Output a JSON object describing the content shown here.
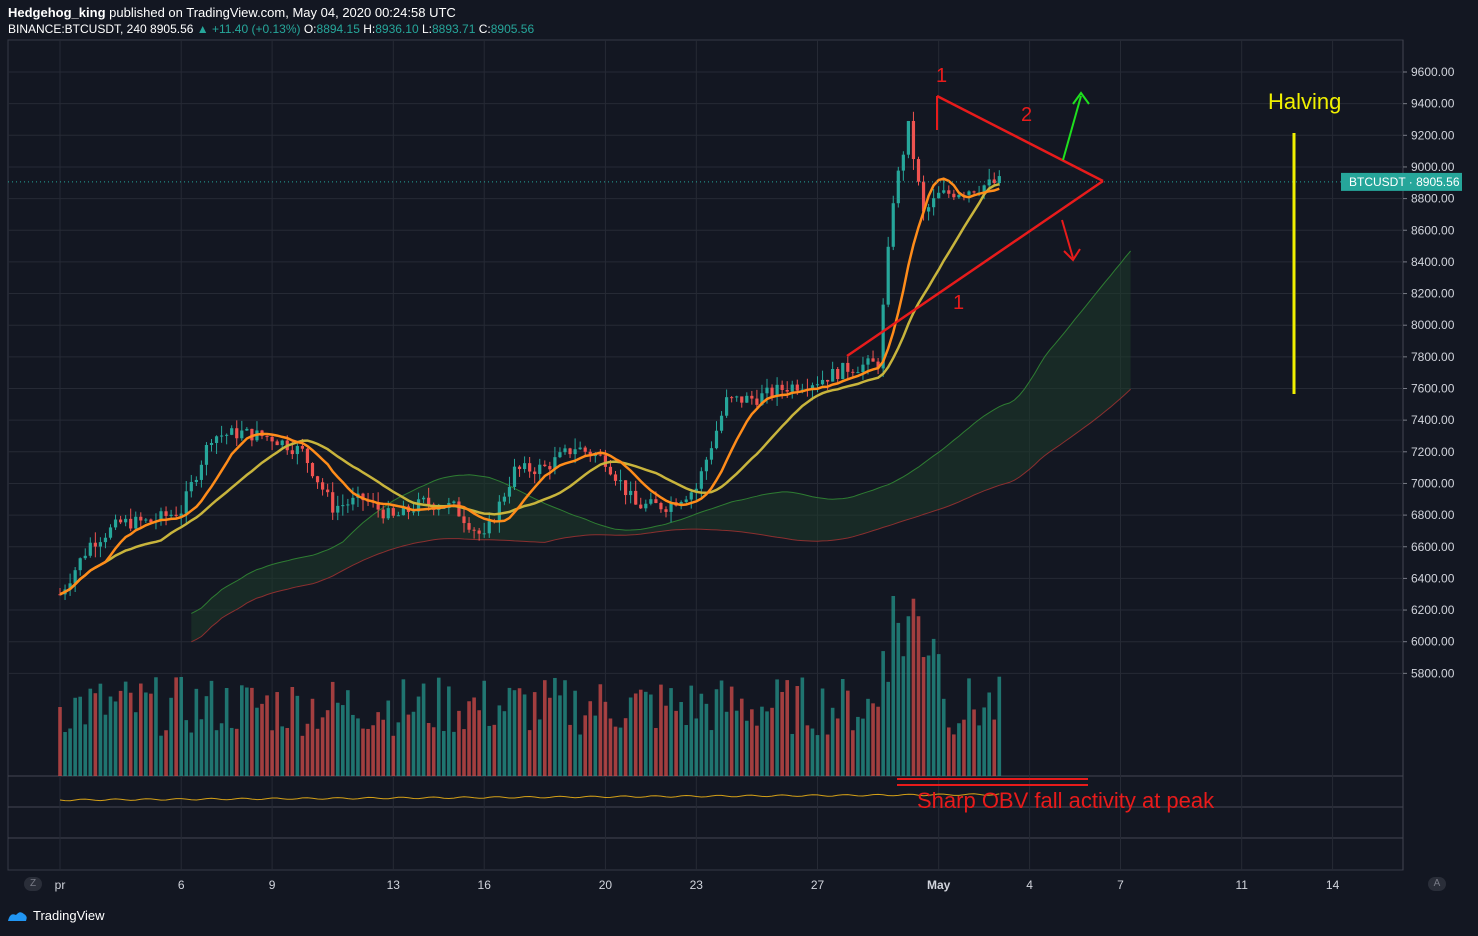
{
  "header": {
    "author": "Hedgehog_king",
    "published_text": "published on TradingView.com, May 04, 2020 00:24:58 UTC",
    "symbol": "BINANCE:BTCUSDT, 240",
    "last": "8905.56",
    "change": "▲ +11.40 (+0.13%)",
    "o_label": "O:",
    "o_value": "8894.15",
    "h_label": "H:",
    "h_value": "8936.10",
    "l_label": "L:",
    "l_value": "8893.71",
    "c_label": "C:",
    "c_value": "8905.56"
  },
  "price_tag": {
    "symbol": "BTCUSDT",
    "value": "8905.56"
  },
  "annotations": {
    "halving": "Halving",
    "obv_note": "Sharp OBV fall activity at peak",
    "label_1_top": "1",
    "label_2": "2",
    "label_1_bottom": "1"
  },
  "brand": {
    "name": "TradingView"
  },
  "corner_buttons": {
    "left": "Z",
    "right": "A"
  },
  "colors": {
    "background": "#131722",
    "up": "#26a69a",
    "down": "#ef5350",
    "ma_fast": "#ff8c1a",
    "ma_slow": "#c8b43c",
    "cloud_green": "#1e3a2a",
    "annotation_red": "#e81b1b",
    "annotation_green": "#1ee01e",
    "halving_line": "#f0f000"
  },
  "chart_data": {
    "type": "candlestick",
    "y_ticks": [
      "9600.00",
      "9400.00",
      "9200.00",
      "9000.00",
      "8800.00",
      "8600.00",
      "8400.00",
      "8200.00",
      "8000.00",
      "7800.00",
      "7600.00",
      "7400.00",
      "7200.00",
      "7000.00",
      "6800.00",
      "6600.00",
      "6400.00",
      "6200.00",
      "6000.00",
      "5800.00"
    ],
    "x_ticks": [
      "pr",
      "6",
      "9",
      "13",
      "16",
      "20",
      "23",
      "27",
      "May",
      "4",
      "7",
      "11",
      "14"
    ],
    "ylim": [
      5600,
      9600
    ],
    "last_price": 8905.56,
    "price_path_4h": [
      {
        "date": "2020-04-02",
        "price": 6300
      },
      {
        "date": "2020-04-03",
        "price": 6620
      },
      {
        "date": "2020-04-04",
        "price": 6750
      },
      {
        "date": "2020-04-05",
        "price": 6760
      },
      {
        "date": "2020-04-06",
        "price": 6830
      },
      {
        "date": "2020-04-07",
        "price": 7300
      },
      {
        "date": "2020-04-08",
        "price": 7320
      },
      {
        "date": "2020-04-09",
        "price": 7290
      },
      {
        "date": "2020-04-10",
        "price": 7200
      },
      {
        "date": "2020-04-11",
        "price": 6850
      },
      {
        "date": "2020-04-12",
        "price": 6900
      },
      {
        "date": "2020-04-13",
        "price": 6780
      },
      {
        "date": "2020-04-14",
        "price": 6880
      },
      {
        "date": "2020-04-15",
        "price": 6850
      },
      {
        "date": "2020-04-16",
        "price": 6650
      },
      {
        "date": "2020-04-17",
        "price": 7080
      },
      {
        "date": "2020-04-18",
        "price": 7100
      },
      {
        "date": "2020-04-19",
        "price": 7230
      },
      {
        "date": "2020-04-20",
        "price": 7150
      },
      {
        "date": "2020-04-21",
        "price": 6860
      },
      {
        "date": "2020-04-22",
        "price": 6860
      },
      {
        "date": "2020-04-23",
        "price": 6970
      },
      {
        "date": "2020-04-24",
        "price": 7520
      },
      {
        "date": "2020-04-25",
        "price": 7540
      },
      {
        "date": "2020-04-26",
        "price": 7610
      },
      {
        "date": "2020-04-27",
        "price": 7650
      },
      {
        "date": "2020-04-28",
        "price": 7730
      },
      {
        "date": "2020-04-29",
        "price": 7760
      },
      {
        "date": "2020-04-29T12",
        "price": 8800
      },
      {
        "date": "2020-04-30",
        "price": 9250
      },
      {
        "date": "2020-04-30T12",
        "price": 8700
      },
      {
        "date": "2020-05-01",
        "price": 8820
      },
      {
        "date": "2020-05-02",
        "price": 8860
      },
      {
        "date": "2020-05-03",
        "price": 8905.56
      }
    ],
    "series": [
      {
        "name": "Volume",
        "type": "bar"
      },
      {
        "name": "OBV",
        "type": "line"
      }
    ]
  }
}
